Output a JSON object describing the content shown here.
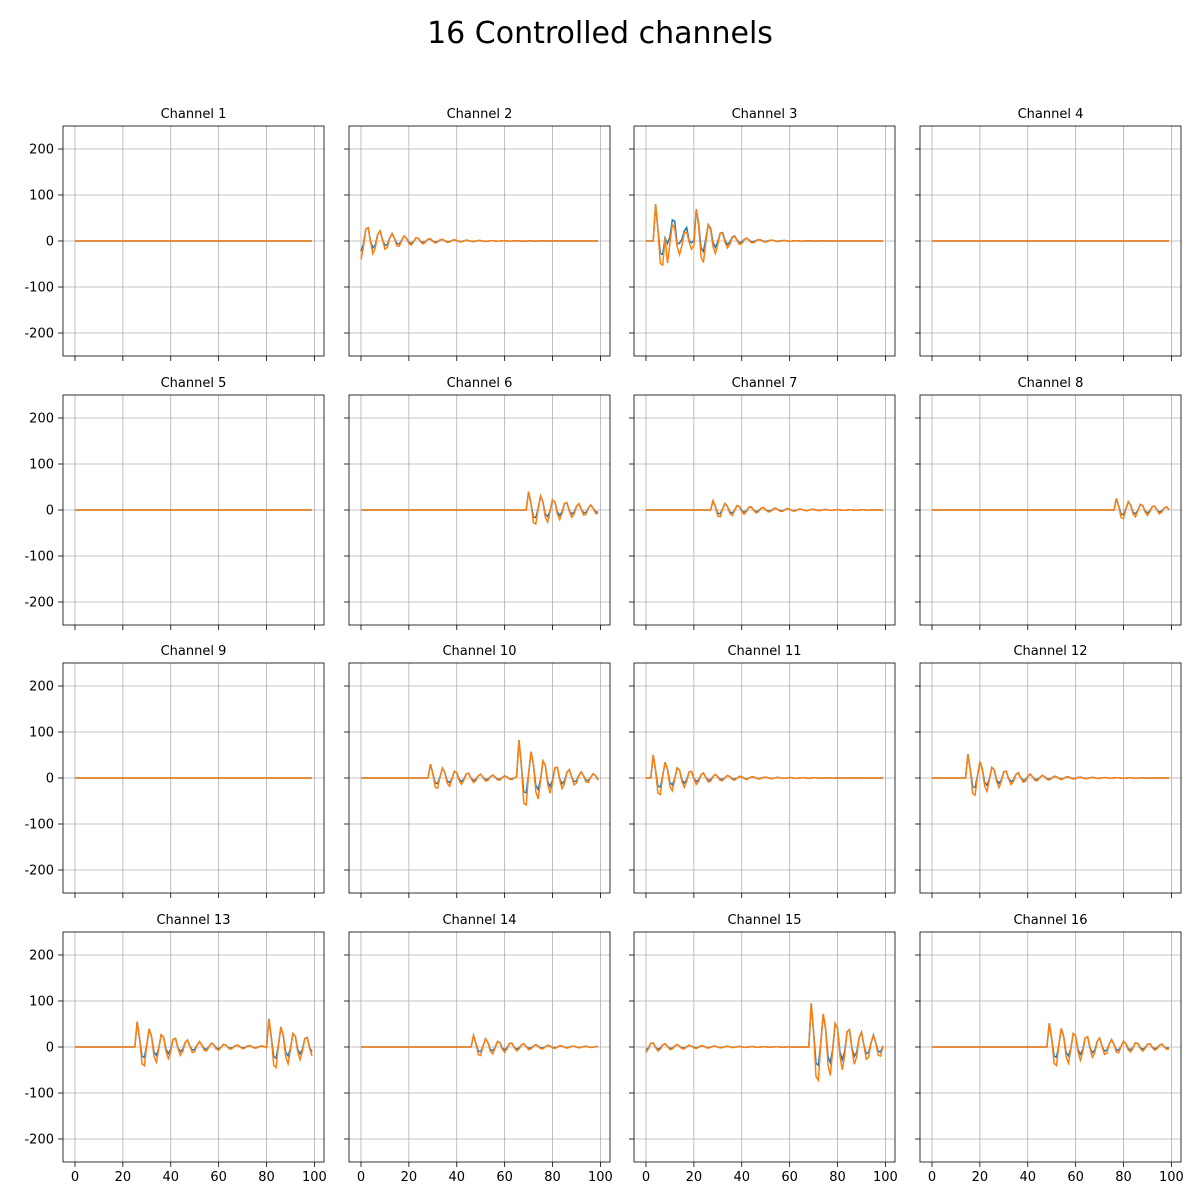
{
  "figure": {
    "title": "16 Controlled channels"
  },
  "chart_data": {
    "type": "line",
    "layout": "4x4 small multiples, shared x and y axes",
    "xlim": [
      0,
      100
    ],
    "ylim": [
      -250,
      250
    ],
    "xticks": [
      0,
      20,
      40,
      60,
      80,
      100
    ],
    "yticks": [
      -200,
      -100,
      0,
      100,
      200
    ],
    "grid": true,
    "series_colors": {
      "reference": "#1f77b4",
      "controlled": "#ff7f0e"
    },
    "panels": [
      {
        "title": "Channel 1",
        "bursts": []
      },
      {
        "title": "Channel 2",
        "bursts": [
          {
            "x": 0,
            "peak": -40,
            "decay": 0.07
          }
        ]
      },
      {
        "title": "Channel 3",
        "bursts": [
          {
            "x": 4,
            "peak": 80,
            "decay": 0.1
          },
          {
            "x": 9,
            "peak": -95,
            "decay": 0.1
          },
          {
            "x": 21,
            "peak": 60,
            "decay": 0.12
          }
        ]
      },
      {
        "title": "Channel 4",
        "bursts": []
      },
      {
        "title": "Channel 5",
        "bursts": []
      },
      {
        "title": "Channel 6",
        "bursts": [
          {
            "x": 70,
            "peak": 40,
            "decay": 0.05
          }
        ]
      },
      {
        "title": "Channel 7",
        "bursts": [
          {
            "x": 28,
            "peak": 20,
            "decay": 0.06
          }
        ]
      },
      {
        "title": "Channel 8",
        "bursts": [
          {
            "x": 77,
            "peak": 25,
            "decay": 0.06
          }
        ]
      },
      {
        "title": "Channel 9",
        "bursts": []
      },
      {
        "title": "Channel 10",
        "bursts": [
          {
            "x": 29,
            "peak": 30,
            "decay": 0.06
          },
          {
            "x": 66,
            "peak": 80,
            "decay": 0.07
          }
        ]
      },
      {
        "title": "Channel 11",
        "bursts": [
          {
            "x": 3,
            "peak": 50,
            "decay": 0.07
          }
        ]
      },
      {
        "title": "Channel 12",
        "bursts": [
          {
            "x": 15,
            "peak": 52,
            "decay": 0.07
          }
        ]
      },
      {
        "title": "Channel 13",
        "bursts": [
          {
            "x": 26,
            "peak": 55,
            "decay": 0.06
          },
          {
            "x": 81,
            "peak": 62,
            "decay": 0.06
          }
        ]
      },
      {
        "title": "Channel 14",
        "bursts": [
          {
            "x": 47,
            "peak": 25,
            "decay": 0.06
          }
        ]
      },
      {
        "title": "Channel 15",
        "bursts": [
          {
            "x": 0,
            "peak": -12,
            "decay": 0.06
          },
          {
            "x": 69,
            "peak": 95,
            "decay": 0.05
          }
        ]
      },
      {
        "title": "Channel 16",
        "bursts": [
          {
            "x": 49,
            "peak": 52,
            "decay": 0.045
          }
        ]
      }
    ]
  }
}
